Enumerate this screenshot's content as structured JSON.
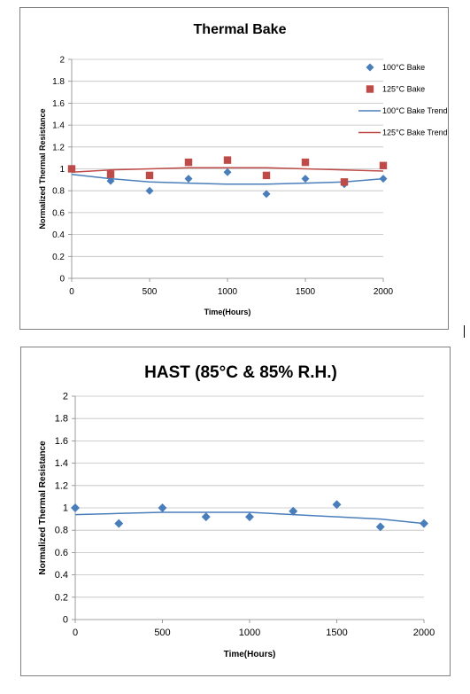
{
  "chart_data": [
    {
      "type": "scatter",
      "title": "Thermal Bake",
      "xlabel": "Time(Hours)",
      "ylabel": "Normalized Thermal Resistance",
      "xlim": [
        0,
        2000
      ],
      "ylim": [
        0,
        2
      ],
      "x_ticks": [
        "0",
        "500",
        "1000",
        "1500",
        "2000"
      ],
      "y_ticks": [
        "0",
        "0.2",
        "0.4",
        "0.6",
        "0.8",
        "1",
        "1.2",
        "1.4",
        "1.6",
        "1.8",
        "2"
      ],
      "grid": "horizontal",
      "legend_position": "right",
      "series": [
        {
          "name": "100°C Bake",
          "kind": "points",
          "marker": "diamond",
          "color": "#4a7ebb",
          "x": [
            0,
            250,
            500,
            750,
            1000,
            1250,
            1500,
            1750,
            2000
          ],
          "y": [
            1.0,
            0.89,
            0.8,
            0.91,
            0.97,
            0.77,
            0.91,
            0.86,
            0.91
          ]
        },
        {
          "name": "125°C Bake",
          "kind": "points",
          "marker": "square",
          "color": "#be4b48",
          "x": [
            0,
            250,
            500,
            750,
            1000,
            1250,
            1500,
            1750,
            2000
          ],
          "y": [
            1.0,
            0.95,
            0.94,
            1.06,
            1.08,
            0.94,
            1.06,
            0.88,
            1.03
          ]
        },
        {
          "name": "100°C Bake Trend",
          "kind": "line",
          "color": "#4a7ebb",
          "x": [
            0,
            250,
            500,
            750,
            1000,
            1250,
            1500,
            1750,
            2000
          ],
          "y": [
            0.95,
            0.91,
            0.88,
            0.87,
            0.86,
            0.86,
            0.87,
            0.88,
            0.91
          ]
        },
        {
          "name": "125°C Bake Trend",
          "kind": "line",
          "color": "#be4b48",
          "x": [
            0,
            250,
            500,
            750,
            1000,
            1250,
            1500,
            1750,
            2000
          ],
          "y": [
            0.97,
            0.99,
            1.0,
            1.01,
            1.01,
            1.01,
            1.0,
            0.99,
            0.98
          ]
        }
      ]
    },
    {
      "type": "scatter",
      "title": "HAST (85°C & 85% R.H.)",
      "xlabel": "Time(Hours)",
      "ylabel": "Normalized Thermal Resistance",
      "xlim": [
        0,
        2000
      ],
      "ylim": [
        0,
        2
      ],
      "x_ticks": [
        "0",
        "500",
        "1000",
        "1500",
        "2000"
      ],
      "y_ticks": [
        "0",
        "0.2",
        "0.4",
        "0.6",
        "0.8",
        "1",
        "1.2",
        "1.4",
        "1.6",
        "1.8",
        "2"
      ],
      "grid": "horizontal",
      "series": [
        {
          "kind": "points",
          "marker": "diamond",
          "color": "#4a7ebb",
          "x": [
            0,
            250,
            500,
            750,
            1000,
            1250,
            1500,
            1750,
            2000
          ],
          "y": [
            1.0,
            0.86,
            1.0,
            0.92,
            0.92,
            0.97,
            1.03,
            0.83,
            0.86
          ]
        },
        {
          "kind": "line",
          "color": "#4a7ebb",
          "x": [
            0,
            250,
            500,
            750,
            1000,
            1250,
            1500,
            1750,
            2000
          ],
          "y": [
            0.94,
            0.95,
            0.96,
            0.96,
            0.96,
            0.94,
            0.92,
            0.9,
            0.86
          ]
        }
      ]
    }
  ]
}
